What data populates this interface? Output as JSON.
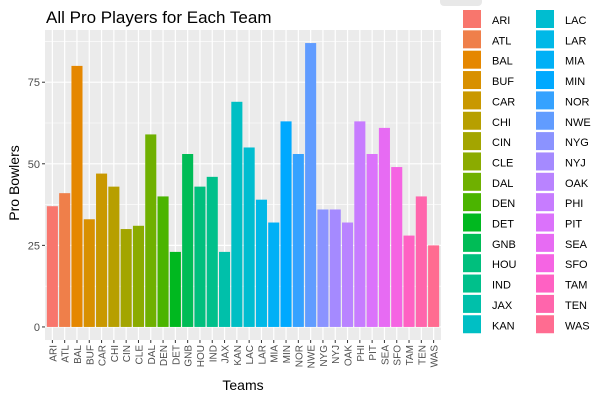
{
  "chart_data": {
    "type": "bar",
    "title": "All Pro Players for Each Team",
    "xlabel": "Teams",
    "ylabel": "Pro Bowlers",
    "ylim": [
      0,
      90
    ],
    "yticks": [
      0,
      25,
      50,
      75
    ],
    "grid": true,
    "legend_placement": "right",
    "categories": [
      "ARI",
      "ATL",
      "BAL",
      "BUF",
      "CAR",
      "CHI",
      "CIN",
      "CLE",
      "DAL",
      "DEN",
      "DET",
      "GNB",
      "HOU",
      "IND",
      "JAX",
      "KAN",
      "LAC",
      "LAR",
      "MIA",
      "MIN",
      "NOR",
      "NWE",
      "NYG",
      "NYJ",
      "OAK",
      "PHI",
      "PIT",
      "SEA",
      "SFO",
      "TAM",
      "TEN",
      "WAS"
    ],
    "values": [
      37,
      41,
      80,
      33,
      47,
      43,
      30,
      31,
      59,
      40,
      23,
      53,
      43,
      46,
      23,
      69,
      55,
      39,
      32,
      63,
      53,
      87,
      36,
      36,
      32,
      63,
      53,
      61,
      49,
      28,
      40,
      25
    ],
    "colors": [
      "#F8766D",
      "#EF7F4A",
      "#E58700",
      "#D89000",
      "#C99800",
      "#B79F00",
      "#A3A500",
      "#8BAB00",
      "#6FB000",
      "#4BB400",
      "#00B81F",
      "#00BC56",
      "#00BF7D",
      "#00C08B",
      "#00C0AA",
      "#00BFC4",
      "#00BDD0",
      "#00B8E7",
      "#00B0F6",
      "#00A9FF",
      "#35A2FF",
      "#619CFF",
      "#8B93FF",
      "#A58AFF",
      "#B983FF",
      "#C77CFF",
      "#DB72FB",
      "#E76BF3",
      "#F564E3",
      "#FF61C3",
      "#FF65AC",
      "#FF6C91"
    ]
  }
}
